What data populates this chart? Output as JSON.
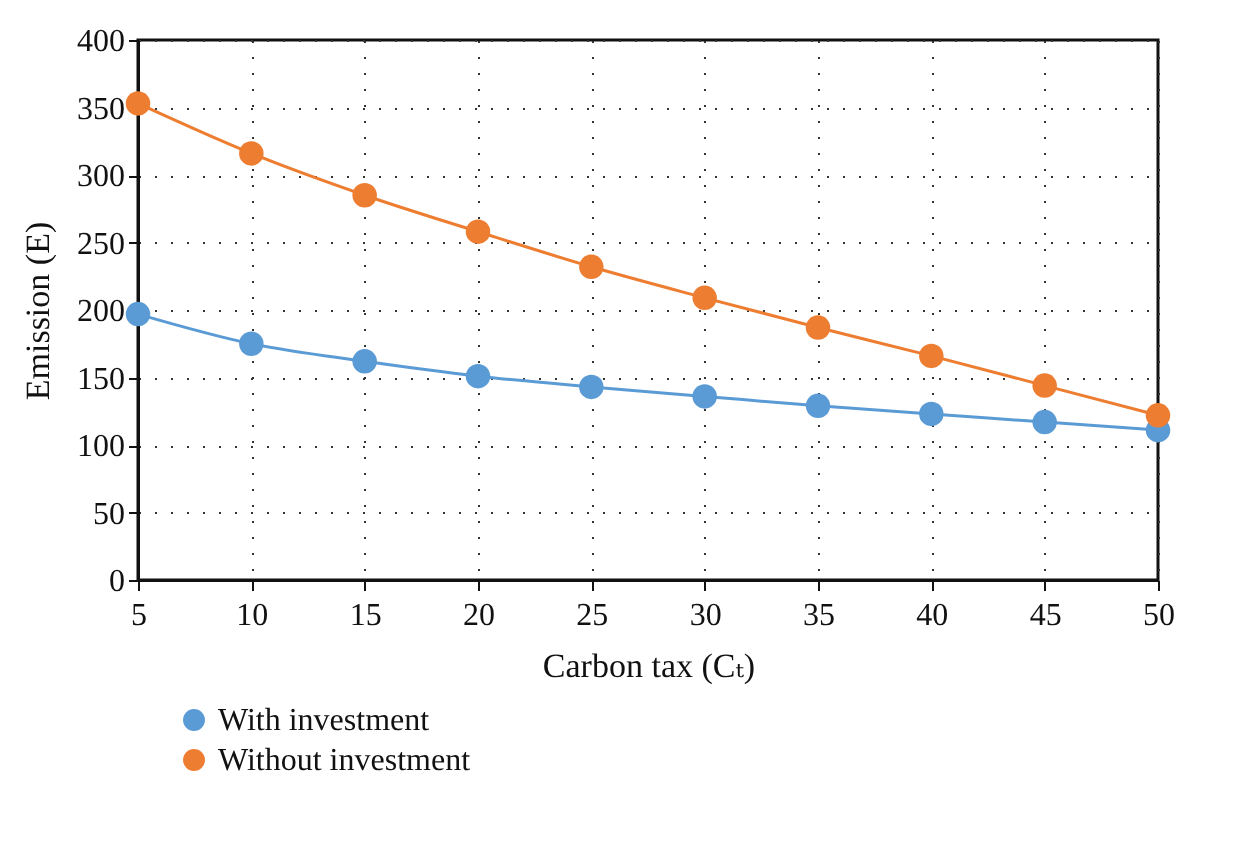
{
  "chart_data": {
    "type": "line",
    "xlabel": "Carbon tax (Cₜ)",
    "ylabel": "Emission (E)",
    "x": [
      5,
      10,
      15,
      20,
      25,
      30,
      35,
      40,
      45,
      50
    ],
    "series": [
      {
        "name": "With investment",
        "color": "#5b9bd5",
        "values": [
          197,
          175,
          162,
          151,
          143,
          136,
          129,
          123,
          117,
          111
        ]
      },
      {
        "name": "Without investment",
        "color": "#ed7d31",
        "values": [
          353,
          316,
          285,
          258,
          232,
          209,
          187,
          166,
          144,
          122
        ]
      }
    ],
    "xlim": [
      5,
      50
    ],
    "xticks": [
      5,
      10,
      15,
      20,
      25,
      30,
      35,
      40,
      45,
      50
    ],
    "ylim": [
      0,
      400
    ],
    "yticks": [
      0,
      50,
      100,
      150,
      200,
      250,
      300,
      350,
      400
    ],
    "grid": true,
    "legend": "bottom",
    "marker": "circle",
    "line_style": "solid"
  }
}
